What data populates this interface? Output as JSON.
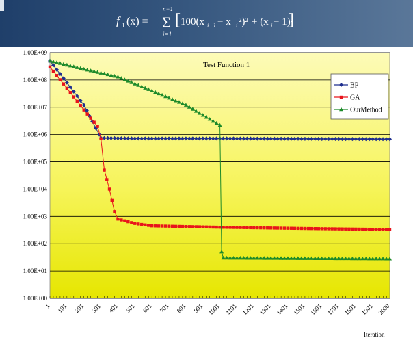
{
  "header": {
    "formula": {
      "lhs": "f",
      "lhs_sub": "1",
      "arg": "(x) =",
      "sum_upper": "n−1",
      "sum_lower": "i=1",
      "term1": "100(x",
      "term1_sub": "i+1",
      "term1_mid": " − x",
      "term1_sub2": "i",
      "term1_end": "²)²",
      "term2": "+ (x",
      "term2_sub": "i",
      "term2_end": " − 1)²"
    }
  },
  "colors": {
    "background_top": "#fdfab0",
    "background_bottom": "#e8e800",
    "bp": "#1f2f8f",
    "ga": "#e8141b",
    "ourmethod": "#1d8a2a"
  },
  "chart_data": {
    "type": "line",
    "title": "Test Function 1",
    "xlabel": "Iteration",
    "ylabel": "",
    "y_scale": "log",
    "y_ticks": [
      {
        "value": 1,
        "label": "1.00E+00"
      },
      {
        "value": 10,
        "label": "1.00E+01"
      },
      {
        "value": 100,
        "label": "1.00E+02"
      },
      {
        "value": 1000,
        "label": "1.00E+03"
      },
      {
        "value": 10000,
        "label": "1.00E+04"
      },
      {
        "value": 100000,
        "label": "1.00E+05"
      },
      {
        "value": 1000000,
        "label": "1.00E+06"
      },
      {
        "value": 10000000,
        "label": "1.00E+07"
      },
      {
        "value": 100000000,
        "label": "1.00E+08"
      },
      {
        "value": 1000000000,
        "label": "1.00E+09"
      }
    ],
    "ylim": [
      1,
      1000000000
    ],
    "x_ticks": [
      1,
      101,
      201,
      301,
      401,
      501,
      601,
      701,
      801,
      901,
      1001,
      1101,
      1201,
      1301,
      1401,
      1501,
      1601,
      1701,
      1801,
      1901,
      2000
    ],
    "xlim": [
      1,
      2000
    ],
    "grid": true,
    "legend_position": "right",
    "series": [
      {
        "name": "BP",
        "color_key": "bp",
        "marker": "diamond",
        "points": [
          [
            1,
            500000000
          ],
          [
            101,
            80000000
          ],
          [
            201,
            12000000
          ],
          [
            251,
            3000000
          ],
          [
            291,
            1000000
          ],
          [
            301,
            750000
          ],
          [
            501,
            720000
          ],
          [
            1001,
            720000
          ],
          [
            1501,
            700000
          ],
          [
            2000,
            680000
          ]
        ]
      },
      {
        "name": "GA",
        "color_key": "ga",
        "marker": "square",
        "points": [
          [
            1,
            300000000
          ],
          [
            101,
            50000000
          ],
          [
            201,
            8000000
          ],
          [
            281,
            2000000
          ],
          [
            301,
            700000
          ],
          [
            321,
            50000
          ],
          [
            351,
            10000
          ],
          [
            381,
            1500
          ],
          [
            401,
            800
          ],
          [
            501,
            550
          ],
          [
            601,
            450
          ],
          [
            1001,
            400
          ],
          [
            1501,
            360
          ],
          [
            2000,
            330
          ]
        ]
      },
      {
        "name": "OurMethod",
        "color_key": "ourmethod",
        "marker": "triangle",
        "points": [
          [
            1,
            500000000
          ],
          [
            201,
            250000000
          ],
          [
            401,
            130000000
          ],
          [
            601,
            40000000
          ],
          [
            801,
            12000000
          ],
          [
            1001,
            2200000
          ],
          [
            1011,
            50
          ],
          [
            1021,
            30
          ],
          [
            2000,
            28
          ]
        ]
      }
    ]
  }
}
